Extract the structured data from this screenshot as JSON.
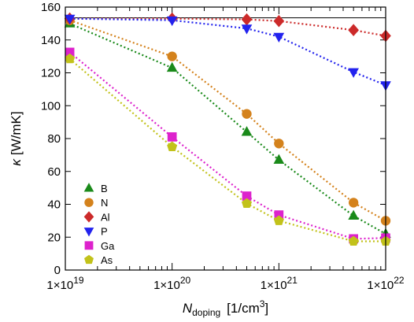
{
  "chart_data": {
    "type": "line",
    "title": "",
    "xlabel": {
      "symbol": "N",
      "subscript": "doping",
      "unit": "[1/cm",
      "unit_sup": "3",
      "unit_close": "]"
    },
    "ylabel": {
      "symbol": "κ",
      "unit": "[W/mK]"
    },
    "xscale": "log",
    "xlim": [
      1e+19,
      1e+22
    ],
    "ylim": [
      0,
      160
    ],
    "x_ticks": [
      {
        "value": 1e+19,
        "mant": "1×10",
        "exp": "19"
      },
      {
        "value": 1e+20,
        "mant": "1×10",
        "exp": "20"
      },
      {
        "value": 1e+21,
        "mant": "1×10",
        "exp": "21"
      },
      {
        "value": 1e+22,
        "mant": "1×10",
        "exp": "22"
      }
    ],
    "y_ticks": [
      0,
      20,
      40,
      60,
      80,
      100,
      120,
      140,
      160
    ],
    "reference_line": 153.5,
    "legend_position": "bottom-left",
    "x": [
      1.1e+19,
      1e+20,
      5e+20,
      1e+21,
      5e+21,
      1e+22
    ],
    "series": [
      {
        "name": "B",
        "marker": "triangle-up",
        "color": "#1a8a1a",
        "values": [
          150,
          123,
          84,
          67,
          33,
          22
        ]
      },
      {
        "name": "N",
        "marker": "circle",
        "color": "#d4821c",
        "values": [
          152,
          130,
          95,
          77,
          41,
          30
        ]
      },
      {
        "name": "Al",
        "marker": "diamond",
        "color": "#cc2a2a",
        "values": [
          153,
          153,
          152.5,
          151.5,
          146,
          142.5
        ]
      },
      {
        "name": "P",
        "marker": "triangle-down",
        "color": "#2222ee",
        "values": [
          153,
          152,
          147,
          142,
          120.5,
          112.5
        ]
      },
      {
        "name": "Ga",
        "marker": "square",
        "color": "#dd22cc",
        "values": [
          132.5,
          81,
          45,
          33.5,
          19,
          19.5
        ]
      },
      {
        "name": "As",
        "marker": "pentagon",
        "color": "#c2c21a",
        "values": [
          128.5,
          75,
          40.5,
          30,
          17.5,
          17.5
        ]
      }
    ]
  }
}
